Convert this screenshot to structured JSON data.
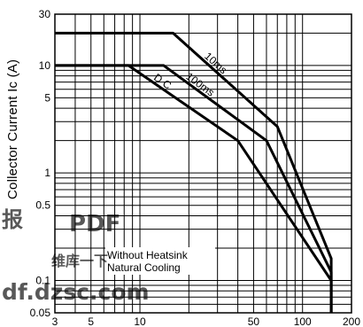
{
  "chart_data": {
    "type": "line",
    "ylabel": "Collector Current   Ic (A)",
    "xlabel": "",
    "x_scale": "log",
    "y_scale": "log",
    "xlim": [
      3,
      200
    ],
    "ylim": [
      0.05,
      30
    ],
    "grid": true,
    "x_tick_labels": [
      {
        "value": 3,
        "label": "3"
      },
      {
        "value": 5,
        "label": "5"
      },
      {
        "value": 10,
        "label": "10"
      },
      {
        "value": 50,
        "label": "50"
      },
      {
        "value": 100,
        "label": "100"
      },
      {
        "value": 200,
        "label": "200"
      }
    ],
    "y_tick_labels": [
      {
        "value": 30,
        "label": "30"
      },
      {
        "value": 10,
        "label": "10"
      },
      {
        "value": 5,
        "label": "5"
      },
      {
        "value": 1,
        "label": "1"
      },
      {
        "value": 0.5,
        "label": "0.5"
      },
      {
        "value": 0.1,
        "label": "0.1"
      },
      {
        "value": 0.05,
        "label": "0.05"
      }
    ],
    "series": [
      {
        "name": "10ms",
        "points": [
          [
            3,
            20
          ],
          [
            16,
            20
          ],
          [
            70,
            2.7
          ],
          [
            150,
            0.16
          ],
          [
            150,
            0.05
          ]
        ]
      },
      {
        "name": "100ms",
        "points": [
          [
            3,
            10
          ],
          [
            14,
            10
          ],
          [
            60,
            2.0
          ],
          [
            150,
            0.12
          ],
          [
            150,
            0.05
          ]
        ]
      },
      {
        "name": "D C",
        "points": [
          [
            3,
            10
          ],
          [
            8.5,
            10
          ],
          [
            40,
            2.0
          ],
          [
            150,
            0.1
          ],
          [
            150,
            0.05
          ]
        ]
      }
    ],
    "annotations": [
      "Without Heatsink",
      "Natural Cooling"
    ]
  },
  "watermark": {
    "lines": [
      "报",
      "PDF",
      "维库一下",
      "df.dzsc.com"
    ],
    "color": "#e87c5c"
  }
}
